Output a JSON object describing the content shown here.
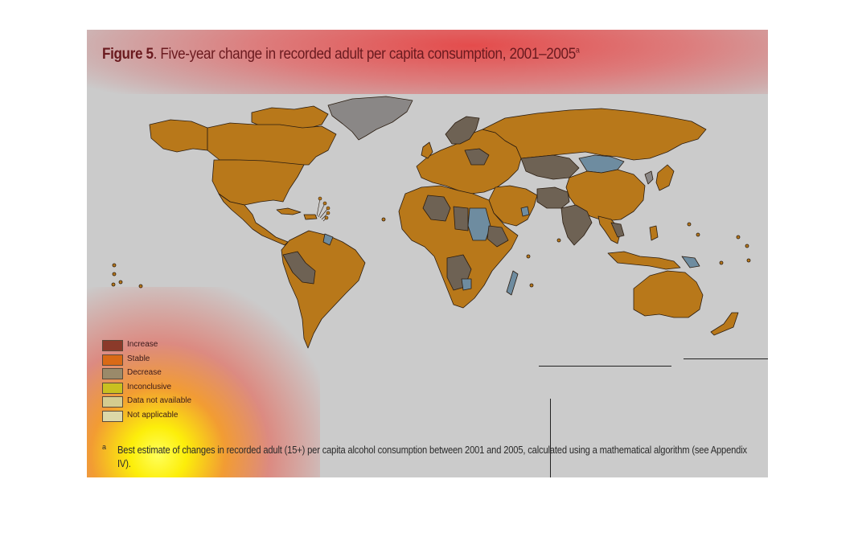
{
  "figure": {
    "label": "Figure 5",
    "title": ". Five-year change in recorded adult per capita consumption, 2001–2005",
    "title_superscript": "a"
  },
  "legend": {
    "items": [
      {
        "label": "Increase",
        "color": "#8b3a2a"
      },
      {
        "label": "Stable",
        "color": "#d96a16"
      },
      {
        "label": "Decrease",
        "color": "#9a8a6a"
      },
      {
        "label": "Inconclusive",
        "color": "#c9c020"
      },
      {
        "label": "Data not available",
        "color": "#d4cc90"
      },
      {
        "label": "Not applicable",
        "color": "#dcd8a8"
      }
    ]
  },
  "footnote": {
    "marker": "a",
    "text": "Best estimate of changes in recorded adult (15+) per capita alcohol consumption between 2001 and 2005, calculated using a mathematical algorithm (see Appendix IV)."
  },
  "map_colors": {
    "stable_land": "#b8781a",
    "decrease_land": "#6e6254",
    "increase_land": "#6e8ca0",
    "not_applicable": "#8a8786",
    "outline": "#2a1c10",
    "background": "#cbcbcb"
  }
}
